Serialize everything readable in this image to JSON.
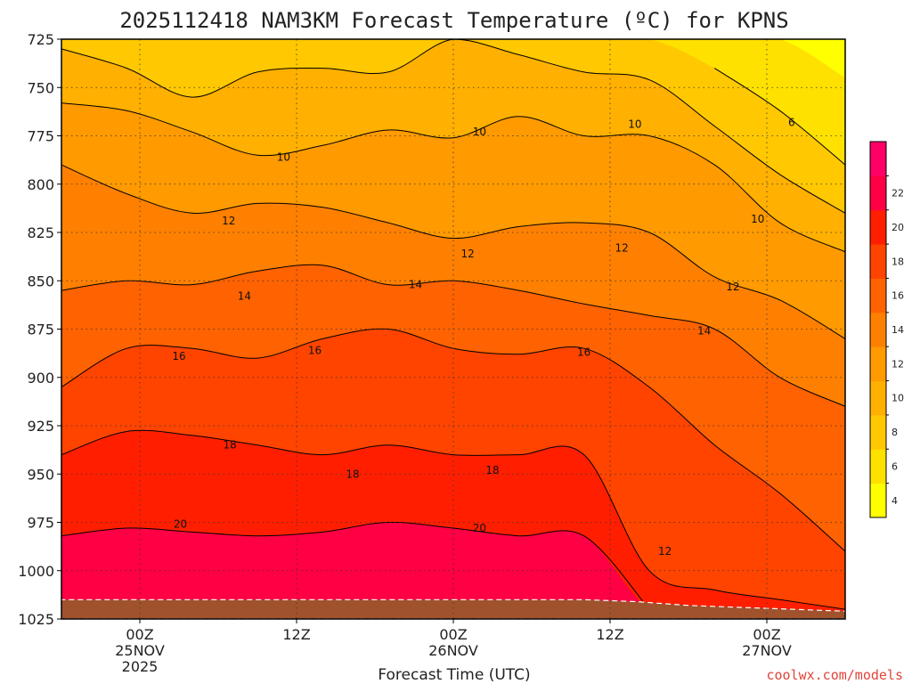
{
  "chart_data": {
    "type": "heatmap",
    "title": "2025112418 NAM3KM Forecast Temperature (ºC) for KPNS",
    "xlabel": "Forecast Time (UTC)",
    "ylabel": "",
    "credit": "coolwx.com/models",
    "y_axis": {
      "reversed": true,
      "range": [
        725,
        1025
      ],
      "ticks": [
        725,
        750,
        775,
        800,
        825,
        850,
        875,
        900,
        925,
        950,
        975,
        1000,
        1025
      ],
      "tick_labels": [
        "725",
        "750",
        "775",
        "800",
        "825",
        "850",
        "875",
        "900",
        "925",
        "950",
        "975",
        "1000",
        "1025"
      ]
    },
    "x_axis": {
      "range_hours_from_init": [
        0,
        60
      ],
      "ticks_hours_from_init": [
        6,
        18,
        30,
        42,
        54
      ],
      "tick_labels": [
        [
          "00Z",
          "25NOV",
          "2025"
        ],
        [
          "12Z"
        ],
        [
          "00Z",
          "26NOV"
        ],
        [
          "12Z"
        ],
        [
          "00Z",
          "27NOV"
        ]
      ]
    },
    "grid": true,
    "colorbar": {
      "placement": "right",
      "levels": [
        2,
        4,
        6,
        8,
        10,
        12,
        14,
        16,
        18,
        20,
        22
      ],
      "labels": [
        "4",
        "6",
        "8",
        "10",
        "12",
        "14",
        "16",
        "18",
        "20",
        "22"
      ],
      "colors": [
        "#ffff00",
        "#ffe100",
        "#ffc800",
        "#ffb000",
        "#ff9a00",
        "#ff8000",
        "#ff6200",
        "#ff4400",
        "#ff1f00",
        "#ff0044",
        "#ff0066"
      ]
    },
    "contour_labels": [
      {
        "value": "10",
        "hour": 17.0,
        "pressure": 786
      },
      {
        "value": "10",
        "hour": 32.0,
        "pressure": 773
      },
      {
        "value": "10",
        "hour": 43.9,
        "pressure": 769
      },
      {
        "value": "6",
        "hour": 55.9,
        "pressure": 768
      },
      {
        "value": "10",
        "hour": 53.3,
        "pressure": 818
      },
      {
        "value": "12",
        "hour": 12.8,
        "pressure": 819
      },
      {
        "value": "12",
        "hour": 31.1,
        "pressure": 836
      },
      {
        "value": "12",
        "hour": 42.9,
        "pressure": 833
      },
      {
        "value": "12",
        "hour": 51.4,
        "pressure": 853
      },
      {
        "value": "14",
        "hour": 14.0,
        "pressure": 858
      },
      {
        "value": "14",
        "hour": 27.1,
        "pressure": 852
      },
      {
        "value": "14",
        "hour": 49.2,
        "pressure": 876
      },
      {
        "value": "16",
        "hour": 9.0,
        "pressure": 889
      },
      {
        "value": "16",
        "hour": 19.4,
        "pressure": 886
      },
      {
        "value": "16",
        "hour": 40.0,
        "pressure": 887
      },
      {
        "value": "18",
        "hour": 12.9,
        "pressure": 935
      },
      {
        "value": "18",
        "hour": 22.3,
        "pressure": 950
      },
      {
        "value": "18",
        "hour": 33.0,
        "pressure": 948
      },
      {
        "value": "20",
        "hour": 9.1,
        "pressure": 976
      },
      {
        "value": "20",
        "hour": 32.0,
        "pressure": 978
      },
      {
        "value": "12",
        "hour": 46.2,
        "pressure": 990
      }
    ],
    "bands": [
      {
        "level": 4,
        "lower": "#ffe100",
        "upper": "#ffff00",
        "hour": [
          0,
          5,
          10,
          15,
          20,
          25,
          30,
          35,
          40,
          45,
          50,
          55,
          60
        ],
        "pressure": [
          null,
          null,
          null,
          null,
          null,
          null,
          null,
          null,
          null,
          null,
          null,
          720,
          745
        ]
      },
      {
        "level": 6,
        "lower": "#ffc800",
        "upper": "#ffe100",
        "hour": [
          0,
          5,
          10,
          15,
          20,
          25,
          30,
          35,
          40,
          45,
          50,
          55,
          60
        ],
        "pressure": [
          null,
          null,
          null,
          null,
          null,
          null,
          null,
          null,
          null,
          722,
          740,
          762,
          790
        ]
      },
      {
        "level": 8,
        "lower": "#ffb000",
        "upper": "#ffc800",
        "hour": [
          0,
          5,
          10,
          15,
          20,
          25,
          30,
          35,
          40,
          45,
          50,
          55,
          60
        ],
        "pressure": [
          730,
          740,
          755,
          742,
          740,
          742,
          725,
          733,
          742,
          746,
          770,
          795,
          815
        ]
      },
      {
        "level": 10,
        "lower": "#ff9a00",
        "upper": "#ffb000",
        "hour": [
          0,
          5,
          10,
          15,
          20,
          25,
          30,
          35,
          40,
          45,
          50,
          55,
          60
        ],
        "pressure": [
          758,
          762,
          773,
          785,
          780,
          772,
          776,
          765,
          775,
          775,
          790,
          820,
          835
        ]
      },
      {
        "level": 12,
        "lower": "#ff8000",
        "upper": "#ff9a00",
        "hour": [
          0,
          5,
          10,
          15,
          20,
          25,
          30,
          35,
          40,
          45,
          50,
          55,
          60
        ],
        "pressure": [
          790,
          805,
          815,
          810,
          812,
          820,
          828,
          822,
          820,
          825,
          848,
          860,
          880
        ]
      },
      {
        "level": 14,
        "lower": "#ff6200",
        "upper": "#ff8000",
        "hour": [
          0,
          5,
          10,
          15,
          20,
          25,
          30,
          35,
          40,
          45,
          50,
          55,
          60
        ],
        "pressure": [
          855,
          850,
          852,
          845,
          842,
          852,
          850,
          855,
          862,
          868,
          875,
          900,
          915
        ]
      },
      {
        "level": 16,
        "lower": "#ff4400",
        "upper": "#ff6200",
        "hour": [
          0,
          5,
          10,
          15,
          20,
          25,
          30,
          35,
          40,
          45,
          50,
          55,
          60
        ],
        "pressure": [
          905,
          885,
          885,
          890,
          880,
          875,
          885,
          888,
          885,
          905,
          935,
          960,
          990
        ]
      },
      {
        "level": 18,
        "lower": "#ff1f00",
        "upper": "#ff4400",
        "hour": [
          0,
          5,
          10,
          15,
          20,
          25,
          30,
          35,
          40,
          45,
          50,
          55,
          60
        ],
        "pressure": [
          940,
          928,
          930,
          935,
          940,
          935,
          940,
          940,
          940,
          1000,
          1010,
          1015,
          1020
        ]
      },
      {
        "level": 20,
        "lower": "#ff0044",
        "upper": "#ff1f00",
        "hour": [
          0,
          5,
          10,
          15,
          20,
          25,
          30,
          35,
          40,
          45,
          50,
          55,
          60
        ],
        "pressure": [
          982,
          978,
          980,
          982,
          980,
          975,
          978,
          982,
          982,
          1020,
          1026,
          1026,
          1026
        ]
      }
    ],
    "ground": {
      "color": "#a0522d",
      "hour": [
        0,
        10,
        20,
        30,
        40,
        44,
        48,
        52,
        56,
        60
      ],
      "pressure": [
        1015,
        1015,
        1015,
        1015,
        1015,
        1016,
        1018,
        1019,
        1020,
        1021
      ]
    }
  }
}
